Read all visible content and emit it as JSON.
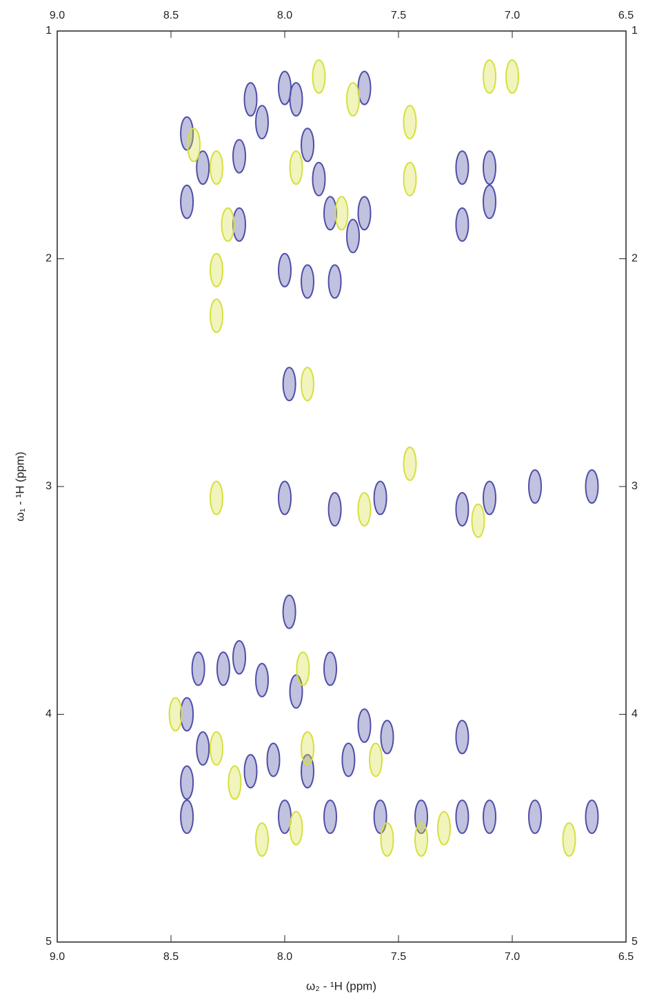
{
  "chart_data": {
    "type": "contour",
    "x_label": "ω₂ - ¹H (ppm)",
    "y_label": "ω₁ - ¹H (ppm)",
    "xlim": [
      9.0,
      6.5
    ],
    "ylim": [
      1,
      5
    ],
    "xticks": [
      {
        "value": 9.0,
        "label": "9.0"
      },
      8.5,
      {
        "value": 8.0,
        "label": "8.0"
      },
      7.5,
      {
        "value": 7.0,
        "label": "7.0"
      },
      6.5
    ],
    "yticks": [
      1,
      2,
      3,
      4,
      5
    ],
    "series": [
      {
        "color": "#4e4ea6",
        "x": [
          8.43,
          8.43,
          8.36,
          8.2,
          8.2,
          8.15,
          8.1,
          8.0,
          7.95,
          7.9,
          7.85,
          7.8,
          7.7,
          8.0,
          7.9,
          7.78,
          7.65,
          7.65,
          7.22,
          7.22,
          7.1,
          7.1,
          7.98,
          7.78,
          7.58,
          7.22,
          7.1,
          6.9,
          6.65,
          8.0,
          7.98,
          8.38,
          8.27,
          8.2,
          8.1,
          7.95,
          7.8,
          7.65,
          7.55,
          8.43,
          8.43,
          8.43,
          8.36,
          8.15,
          8.05,
          7.9,
          7.72,
          7.58,
          7.4,
          7.22,
          7.1,
          6.9,
          6.65,
          7.22,
          7.8,
          8.0
        ],
        "y": [
          1.45,
          1.75,
          1.6,
          1.55,
          1.85,
          1.3,
          1.4,
          1.25,
          1.3,
          1.5,
          1.65,
          1.8,
          1.9,
          2.05,
          2.1,
          2.1,
          1.25,
          1.8,
          1.6,
          1.85,
          1.6,
          1.75,
          2.55,
          3.1,
          3.05,
          3.1,
          3.05,
          3.0,
          3.0,
          3.05,
          3.55,
          3.8,
          3.8,
          3.75,
          3.85,
          3.9,
          3.8,
          4.05,
          4.1,
          4.0,
          4.3,
          4.45,
          4.15,
          4.25,
          4.2,
          4.25,
          4.2,
          4.45,
          4.45,
          4.45,
          4.45,
          4.45,
          4.45,
          4.1,
          4.45,
          4.45
        ]
      },
      {
        "color": "#d6df3e",
        "x": [
          8.4,
          8.3,
          8.25,
          7.95,
          7.85,
          7.75,
          7.7,
          7.45,
          7.45,
          7.1,
          7.0,
          8.3,
          8.3,
          7.9,
          7.45,
          8.3,
          7.65,
          7.15,
          7.92,
          8.48,
          8.3,
          7.9,
          7.6,
          8.1,
          7.95,
          7.55,
          7.4,
          7.3,
          6.75,
          8.22
        ],
        "y": [
          1.5,
          1.6,
          1.85,
          1.6,
          1.2,
          1.8,
          1.3,
          1.4,
          1.65,
          1.2,
          1.2,
          2.05,
          2.25,
          2.55,
          2.9,
          3.05,
          3.1,
          3.15,
          3.8,
          4.0,
          4.15,
          4.15,
          4.2,
          4.55,
          4.5,
          4.55,
          4.55,
          4.5,
          4.55,
          4.3
        ]
      }
    ]
  }
}
